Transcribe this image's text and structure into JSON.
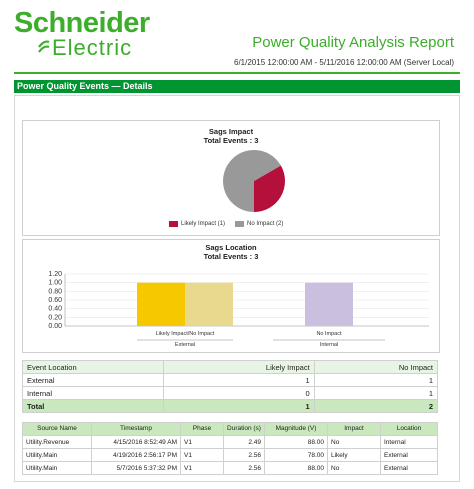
{
  "header": {
    "logo_line1": "Schneider",
    "logo_line2": "Electric",
    "report_title": "Power Quality Analysis Report",
    "date_range": "6/1/2015 12:00:00 AM - 5/11/2016 12:00:00 AM (Server Local)",
    "section_title": "Power Quality Events — Details"
  },
  "colors": {
    "brand_green": "#3dae2b",
    "section_green": "#009530",
    "likely_impact": "#b5103c",
    "no_impact": "#999999"
  },
  "chart_data": [
    {
      "type": "pie",
      "title": "Sags Impact",
      "subtitle": "Total Events : 3",
      "categories": [
        "Likely Impact (1)",
        "No Impact (2)"
      ],
      "values": [
        1,
        2
      ],
      "colors": [
        "#b5103c",
        "#999999"
      ],
      "legend": "bottom"
    },
    {
      "type": "bar",
      "title": "Sags Location",
      "subtitle": "Total Events : 3",
      "ylim": [
        0,
        1.2
      ],
      "yticks": [
        "0.00",
        "0.20",
        "0.40",
        "0.60",
        "0.80",
        "1.00",
        "1.20"
      ],
      "groups": [
        "External",
        "Internal"
      ],
      "categories": [
        "Likely Impact/No Impact",
        "No Impact"
      ],
      "bars": [
        {
          "group": "External",
          "value": 1,
          "color": "#f5c800"
        },
        {
          "group": "External",
          "value": 1,
          "color": "#e9d98f"
        },
        {
          "group": "Internal",
          "value": 1,
          "color": "#cbbfe0"
        }
      ],
      "grid": true
    }
  ],
  "summary": {
    "headers": [
      "Event Location",
      "Likely Impact",
      "No Impact"
    ],
    "rows": [
      [
        "External",
        "1",
        "1"
      ],
      [
        "Internal",
        "0",
        "1"
      ]
    ],
    "total": [
      "Total",
      "1",
      "2"
    ]
  },
  "detail": {
    "headers": [
      "Source Name",
      "Timestamp",
      "Phase",
      "Duration (s)",
      "Magnitude (V)",
      "Impact",
      "Location"
    ],
    "rows": [
      [
        "Utility.Revenue",
        "4/15/2016 8:52:49 AM",
        "V1",
        "2.49",
        "88.00",
        "No",
        "Internal"
      ],
      [
        "Utility.Main",
        "4/19/2016 2:56:17 PM",
        "V1",
        "2.56",
        "78.00",
        "Likely",
        "External"
      ],
      [
        "Utility.Main",
        "5/7/2016 5:37:32 PM",
        "V1",
        "2.56",
        "88.00",
        "No",
        "External"
      ]
    ]
  }
}
